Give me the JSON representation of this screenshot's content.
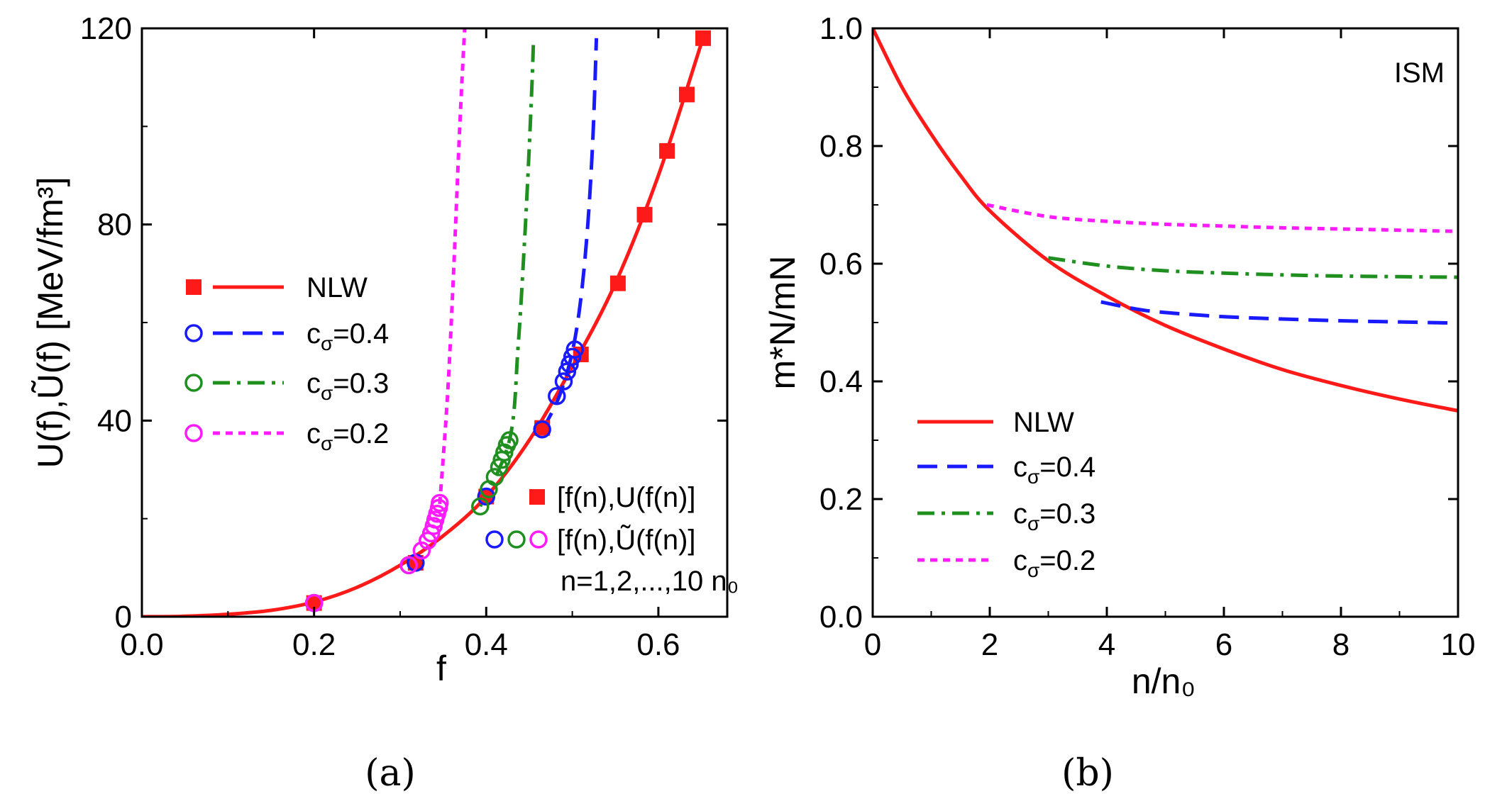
{
  "chart_data": [
    {
      "type": "line",
      "panel_label": "(a)",
      "xlabel": "f",
      "ylabel": "U(f),Ũ(f) [MeV/fm³]",
      "xlim": [
        0,
        0.68
      ],
      "ylim": [
        0,
        120
      ],
      "xticks": [
        "0.0",
        "0.2",
        "0.4",
        "0.6"
      ],
      "xtick_values": [
        0,
        0.2,
        0.4,
        0.6
      ],
      "yticks": [
        "0",
        "40",
        "80",
        "120"
      ],
      "ytick_values": [
        0,
        40,
        80,
        120
      ],
      "series": [
        {
          "name": "NLW",
          "color": "#ff1a1a",
          "dash": "solid",
          "marker": "square-filled",
          "x": [
            0,
            0.05,
            0.1,
            0.15,
            0.2,
            0.25,
            0.3,
            0.35,
            0.4,
            0.45,
            0.5,
            0.55,
            0.6,
            0.65
          ],
          "y": [
            0,
            0.1,
            0.5,
            1.3,
            3,
            6,
            10.5,
            16.5,
            24.5,
            36,
            51,
            68,
            90,
            117
          ],
          "marker_x": [
            0.2,
            0.318,
            0.4,
            0.465,
            0.51,
            0.553,
            0.584,
            0.61,
            0.633,
            0.652
          ],
          "marker_y": [
            2.8,
            11,
            24.5,
            38.5,
            53.5,
            68,
            82,
            95,
            106.5,
            118
          ]
        },
        {
          "name": "cσ=0.4",
          "color": "#1a1aff",
          "dash": "dashed",
          "marker": "circle-open",
          "x": [
            0.465,
            0.485,
            0.5,
            0.51,
            0.518,
            0.524,
            0.528
          ],
          "y": [
            38,
            45,
            54,
            65,
            80,
            98,
            118
          ],
          "marker_x": [
            0.2,
            0.318,
            0.4,
            0.465,
            0.482,
            0.49,
            0.494,
            0.497,
            0.5,
            0.503
          ],
          "marker_y": [
            2.8,
            11,
            24.5,
            38.2,
            45,
            48,
            50,
            51.5,
            53,
            54.5
          ]
        },
        {
          "name": "cσ=0.3",
          "color": "#1f8f1f",
          "dash": "dashdot",
          "marker": "circle-open",
          "x": [
            0.393,
            0.427,
            0.437,
            0.444,
            0.449,
            0.453,
            0.455
          ],
          "y": [
            22.5,
            36,
            55,
            75,
            92,
            108,
            118
          ],
          "marker_x": [
            0.2,
            0.31,
            0.393,
            0.403,
            0.41,
            0.415,
            0.418,
            0.421,
            0.424,
            0.427
          ],
          "marker_y": [
            2.8,
            10.5,
            22.5,
            26,
            28.5,
            30.5,
            32,
            33.5,
            35,
            36
          ]
        },
        {
          "name": "cσ=0.2",
          "color": "#ff1aff",
          "dash": "dotted",
          "marker": "circle-open",
          "x": [
            0.346,
            0.355,
            0.362,
            0.368,
            0.372,
            0.375
          ],
          "y": [
            23,
            45,
            70,
            95,
            110,
            120
          ],
          "marker_x": [
            0.2,
            0.31,
            0.325,
            0.332,
            0.336,
            0.339,
            0.341,
            0.343,
            0.345,
            0.346
          ],
          "marker_y": [
            2.8,
            10.5,
            13.5,
            15.5,
            17,
            18.5,
            19.8,
            21,
            22.2,
            23.2
          ]
        }
      ],
      "legend": [
        "NLW",
        "cσ=0.4",
        "cσ=0.3",
        "cσ=0.2"
      ],
      "annotations": [
        "[f(n),U(f(n)]",
        "[f(n),Ũ(f(n)]",
        "n=1,2,...,10 n₀"
      ]
    },
    {
      "type": "line",
      "panel_label": "(b)",
      "xlabel": "n/n₀",
      "ylabel": "m*N/mN",
      "xlim": [
        0,
        10
      ],
      "ylim": [
        0,
        1
      ],
      "xticks": [
        "0",
        "2",
        "4",
        "6",
        "8",
        "10"
      ],
      "xtick_values": [
        0,
        2,
        4,
        6,
        8,
        10
      ],
      "yticks": [
        "0.0",
        "0.2",
        "0.4",
        "0.6",
        "0.8",
        "1.0"
      ],
      "ytick_values": [
        0,
        0.2,
        0.4,
        0.6,
        0.8,
        1.0
      ],
      "series": [
        {
          "name": "NLW",
          "color": "#ff1a1a",
          "dash": "solid",
          "x": [
            0,
            0.5,
            1,
            1.5,
            2,
            3,
            4,
            5,
            6,
            7,
            8,
            9,
            10
          ],
          "y": [
            1,
            0.9,
            0.82,
            0.75,
            0.69,
            0.605,
            0.545,
            0.495,
            0.455,
            0.42,
            0.393,
            0.37,
            0.35
          ]
        },
        {
          "name": "cσ=0.4",
          "color": "#1a1aff",
          "dash": "dashed",
          "x": [
            3.9,
            4.5,
            5,
            6,
            7,
            8,
            9,
            10
          ],
          "y": [
            0.535,
            0.523,
            0.517,
            0.51,
            0.506,
            0.503,
            0.501,
            0.499
          ]
        },
        {
          "name": "cσ=0.3",
          "color": "#1f8f1f",
          "dash": "dashdot",
          "x": [
            3,
            4,
            5,
            6,
            7,
            8,
            9,
            10
          ],
          "y": [
            0.61,
            0.596,
            0.588,
            0.584,
            0.581,
            0.579,
            0.578,
            0.577
          ]
        },
        {
          "name": "cσ=0.2",
          "color": "#ff1aff",
          "dash": "dotted",
          "x": [
            1.95,
            3,
            4,
            5,
            6,
            7,
            8,
            9,
            10
          ],
          "y": [
            0.7,
            0.68,
            0.672,
            0.667,
            0.664,
            0.661,
            0.659,
            0.657,
            0.655
          ]
        }
      ],
      "legend": [
        "NLW",
        "cσ=0.4",
        "cσ=0.3",
        "cσ=0.2"
      ],
      "annotations": [
        "ISM"
      ]
    }
  ]
}
